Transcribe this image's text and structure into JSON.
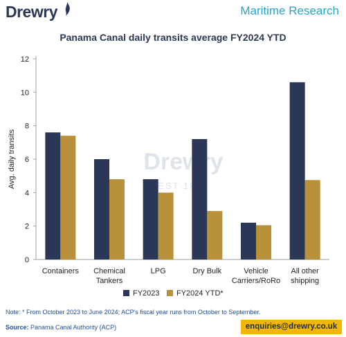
{
  "header": {
    "logo_text": "Drewry",
    "right_text": "Maritime Research"
  },
  "chart_data": {
    "type": "bar",
    "title": "Panama Canal daily transits average FY2024 YTD",
    "xlabel": "",
    "ylabel": "Avg. daily transits",
    "ylim": [
      0,
      12
    ],
    "yticks": [
      0,
      2,
      4,
      6,
      8,
      10,
      12
    ],
    "categories": [
      [
        "Containers"
      ],
      [
        "Chemical",
        "Tankers"
      ],
      [
        "LPG"
      ],
      [
        "Dry Bulk"
      ],
      [
        "Vehicle",
        "Carriers/RoRo"
      ],
      [
        "All other",
        "shipping"
      ]
    ],
    "series": [
      {
        "name": "FY2023",
        "color": "#2a3756",
        "values": [
          7.6,
          6.0,
          4.8,
          7.2,
          2.2,
          10.6
        ]
      },
      {
        "name": "FY2024 YTD*",
        "color": "#b8913a",
        "values": [
          7.4,
          4.8,
          4.0,
          2.9,
          2.05,
          4.75
        ]
      }
    ],
    "legend": "bottom",
    "grid": false,
    "watermark": {
      "text": "Drewry",
      "sub": "EST 1970"
    }
  },
  "footer": {
    "note": "Note: * From October 2023 to June 2024; ACP's fiscal year runs from October to September.",
    "source_label": "Source:",
    "source_text": " Panama Canal Authority (ACP)",
    "enquiries": "enquiries@drewry.co.uk"
  }
}
